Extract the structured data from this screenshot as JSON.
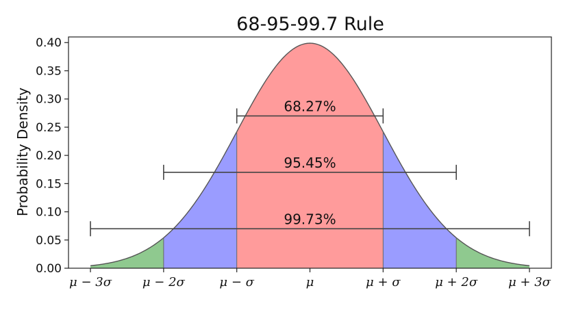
{
  "chart_data": {
    "type": "area",
    "title": "68-95-99.7 Rule",
    "xlabel": "",
    "ylabel": "Probability Density",
    "xlim": [
      -3.3,
      3.3
    ],
    "ylim": [
      0,
      0.41
    ],
    "curve_x_range": [
      -3,
      3
    ],
    "y_ticks": [
      "0.00",
      "0.05",
      "0.10",
      "0.15",
      "0.20",
      "0.25",
      "0.30",
      "0.35",
      "0.40"
    ],
    "x_ticks": [
      {
        "x": -3,
        "label": "μ − 3σ"
      },
      {
        "x": -2,
        "label": "μ − 2σ"
      },
      {
        "x": -1,
        "label": "μ − σ"
      },
      {
        "x": 0,
        "label": "μ"
      },
      {
        "x": 1,
        "label": "μ + σ"
      },
      {
        "x": 2,
        "label": "μ + 2σ"
      },
      {
        "x": 3,
        "label": "μ + 3σ"
      }
    ],
    "regions": [
      {
        "from": -3,
        "to": -2,
        "color": "#8fc98f"
      },
      {
        "from": -2,
        "to": -1,
        "color": "#9a9cff"
      },
      {
        "from": -1,
        "to": 1,
        "color": "#ff9b9b"
      },
      {
        "from": 1,
        "to": 2,
        "color": "#9a9cff"
      },
      {
        "from": 2,
        "to": 3,
        "color": "#8fc98f"
      }
    ],
    "intervals": [
      {
        "from": -1,
        "to": 1,
        "y": 0.27,
        "label": "68.27%"
      },
      {
        "from": -2,
        "to": 2,
        "y": 0.17,
        "label": "95.45%"
      },
      {
        "from": -3,
        "to": 3,
        "y": 0.07,
        "label": "99.73%"
      }
    ]
  }
}
